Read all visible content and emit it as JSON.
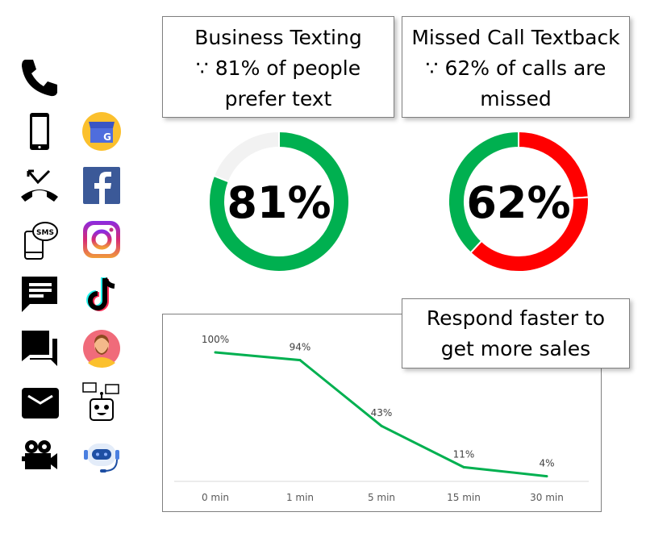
{
  "cards": [
    {
      "title": "Business Texting",
      "line2": "∵  81% of people",
      "line3": "prefer text"
    },
    {
      "title": "Missed Call Textback",
      "line2": "∵  62% of calls are",
      "line3": "missed"
    }
  ],
  "callout": {
    "line1": "Respond faster to",
    "line2": "get more sales"
  },
  "icons": {
    "left": [
      "phone-icon",
      "smartphone-icon",
      "missed-call-icon",
      "sms-phone-icon",
      "message-icon",
      "chat-icon",
      "mail-icon",
      "video-camera-icon"
    ],
    "right": [
      "google-business-icon",
      "facebook-icon",
      "instagram-icon",
      "tiktok-icon",
      "avatar-icon",
      "chatbot-icon",
      "support-bot-icon"
    ]
  },
  "colors": {
    "green": "#00b050",
    "red": "#ff0000",
    "grey": "#f2f2f2"
  },
  "chart_data": [
    {
      "type": "pie",
      "variant": "donut",
      "label": "81%",
      "slices": [
        {
          "value": 81,
          "color": "#00b050"
        },
        {
          "value": 19,
          "color": "#f2f2f2"
        }
      ]
    },
    {
      "type": "pie",
      "variant": "donut",
      "label": "62%",
      "slices": [
        {
          "value": 24,
          "color": "#ff0000"
        },
        {
          "value": 38,
          "color": "#ff0000"
        },
        {
          "value": 38,
          "color": "#00b050"
        }
      ]
    },
    {
      "type": "line",
      "categories": [
        "0 min",
        "1 min",
        "5 min",
        "15 min",
        "30 min"
      ],
      "values": [
        100,
        94,
        43,
        11,
        4
      ],
      "data_labels": [
        "100%",
        "94%",
        "43%",
        "11%",
        "4%"
      ],
      "color": "#00b050",
      "ylim": [
        0,
        125
      ],
      "grid": false
    }
  ]
}
